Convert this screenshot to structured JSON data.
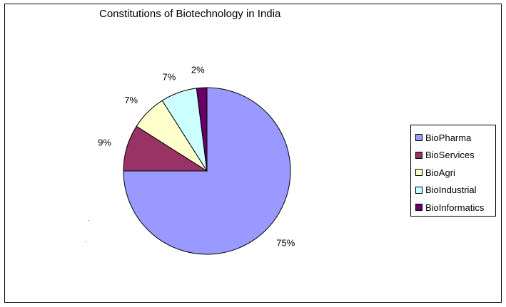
{
  "chart_data": {
    "type": "pie",
    "title": "Constitutions of Biotechnology in India",
    "categories": [
      "BioPharma",
      "BioServices",
      "BioAgri",
      "BioIndustrial",
      "BioInformatics"
    ],
    "values": [
      75,
      9,
      7,
      7,
      2
    ],
    "data_labels": [
      "75%",
      "9%",
      "7%",
      "7%",
      "2%"
    ],
    "colors": [
      "#9999ff",
      "#993366",
      "#ffffcc",
      "#ccffff",
      "#660066"
    ],
    "legend_position": "right",
    "start_angle": "12 o'clock",
    "direction": "clockwise"
  }
}
